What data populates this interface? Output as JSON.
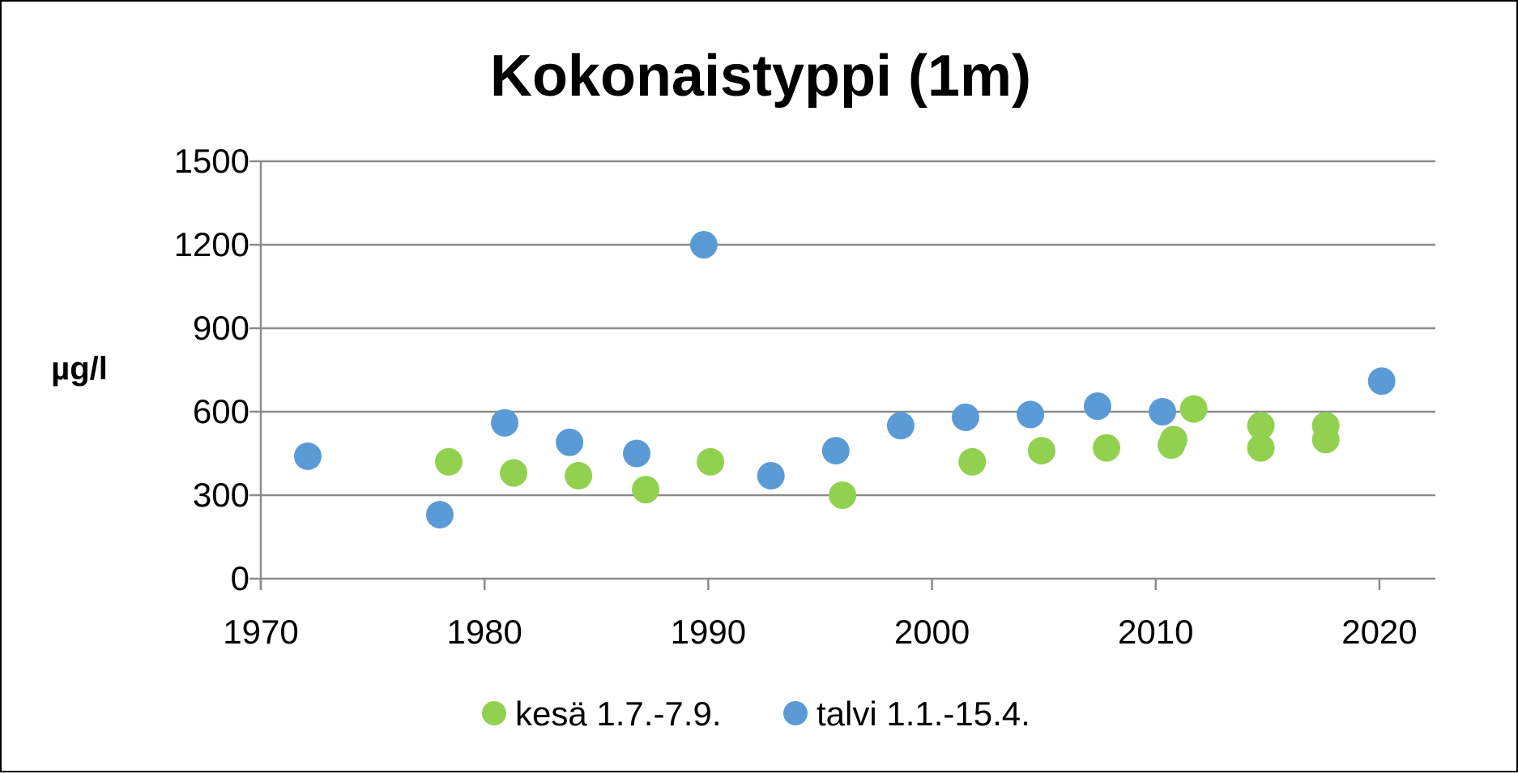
{
  "chart_data": {
    "type": "scatter",
    "title": "Kokonaistyppi (1m)",
    "xlabel": "",
    "ylabel": "µg/l",
    "xlim": [
      1970,
      2022.5
    ],
    "ylim": [
      0,
      1500
    ],
    "x_ticks": [
      1970,
      1980,
      1990,
      2000,
      2010,
      2020
    ],
    "y_ticks": [
      0,
      300,
      600,
      900,
      1200,
      1500
    ],
    "grid": true,
    "legend_position": "bottom",
    "series": [
      {
        "name": "kesä 1.7.-7.9.",
        "color": "#92d050",
        "points": [
          {
            "x": 1978.4,
            "y": 420
          },
          {
            "x": 1981.3,
            "y": 380
          },
          {
            "x": 1984.2,
            "y": 370
          },
          {
            "x": 1987.2,
            "y": 320
          },
          {
            "x": 1990.1,
            "y": 420
          },
          {
            "x": 1996.0,
            "y": 300
          },
          {
            "x": 2001.8,
            "y": 420
          },
          {
            "x": 2004.9,
            "y": 460
          },
          {
            "x": 2007.8,
            "y": 470
          },
          {
            "x": 2010.7,
            "y": 480
          },
          {
            "x": 2010.8,
            "y": 500
          },
          {
            "x": 2011.7,
            "y": 610
          },
          {
            "x": 2014.7,
            "y": 470
          },
          {
            "x": 2014.7,
            "y": 550
          },
          {
            "x": 2017.6,
            "y": 500
          },
          {
            "x": 2017.6,
            "y": 550
          }
        ]
      },
      {
        "name": "talvi 1.1.-15.4.",
        "color": "#5b9bd5",
        "points": [
          {
            "x": 1972.1,
            "y": 440
          },
          {
            "x": 1978.0,
            "y": 230
          },
          {
            "x": 1980.9,
            "y": 560
          },
          {
            "x": 1983.8,
            "y": 490
          },
          {
            "x": 1986.8,
            "y": 450
          },
          {
            "x": 1989.8,
            "y": 1200
          },
          {
            "x": 1992.8,
            "y": 370
          },
          {
            "x": 1995.7,
            "y": 460
          },
          {
            "x": 1998.6,
            "y": 550
          },
          {
            "x": 2001.5,
            "y": 580
          },
          {
            "x": 2004.4,
            "y": 590
          },
          {
            "x": 2007.4,
            "y": 620
          },
          {
            "x": 2010.3,
            "y": 600
          },
          {
            "x": 2020.1,
            "y": 710
          }
        ]
      }
    ]
  }
}
